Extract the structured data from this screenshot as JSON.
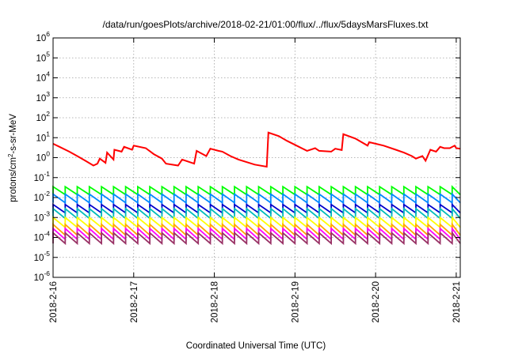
{
  "chart_data": {
    "type": "line",
    "title": "/data/run/goesPlots/archive/2018-02-21/01:00/flux/../flux/5daysMarsFluxes.txt",
    "xlabel": "Coordinated Universal Time (UTC)",
    "ylabel": {
      "base": "protons/cm",
      "sup": "2",
      "rest": "-s-sr-MeV"
    },
    "y_scale": "log",
    "ylim": [
      1e-06,
      1000000.0
    ],
    "y_ticks": [
      {
        "exp": -6
      },
      {
        "exp": -5
      },
      {
        "exp": -4
      },
      {
        "exp": -3
      },
      {
        "exp": -2
      },
      {
        "exp": -1
      },
      {
        "exp": 0
      },
      {
        "exp": 1
      },
      {
        "exp": 2
      },
      {
        "exp": 3
      },
      {
        "exp": 4
      },
      {
        "exp": 5
      },
      {
        "exp": 6
      }
    ],
    "x_range_days": [
      0,
      5.05
    ],
    "x_ticks": [
      "2018-2-16",
      "2018-2-17",
      "2018-2-18",
      "2018-2-19",
      "2018-2-20",
      "2018-2-21"
    ],
    "grid": true,
    "series": [
      {
        "color": "#ff0000",
        "x": [
          0.0,
          0.08,
          0.2,
          0.3,
          0.4,
          0.5,
          0.55,
          0.58,
          0.65,
          0.67,
          0.75,
          0.76,
          0.85,
          0.88,
          0.98,
          1.0,
          1.15,
          1.25,
          1.35,
          1.4,
          1.55,
          1.6,
          1.75,
          1.78,
          1.9,
          1.95,
          2.05,
          2.1,
          2.2,
          2.3,
          2.5,
          2.65,
          2.67,
          2.8,
          2.9,
          3.05,
          3.15,
          3.25,
          3.3,
          3.45,
          3.5,
          3.58,
          3.6,
          3.75,
          3.9,
          3.92,
          4.0,
          4.1,
          4.25,
          4.35,
          4.45,
          4.5,
          4.58,
          4.62,
          4.68,
          4.75,
          4.8,
          4.85,
          4.92,
          4.98,
          5.0,
          5.05
        ],
        "y": [
          5.0,
          3.5,
          2.0,
          1.2,
          0.7,
          0.4,
          0.5,
          0.9,
          0.55,
          1.8,
          0.8,
          2.5,
          2.0,
          3.5,
          2.5,
          4.0,
          3.0,
          1.5,
          0.9,
          0.5,
          0.4,
          0.8,
          0.5,
          2.2,
          1.2,
          2.8,
          2.2,
          2.0,
          1.2,
          0.8,
          0.45,
          0.35,
          18.0,
          12.0,
          7.0,
          3.5,
          2.2,
          3.0,
          2.2,
          2.0,
          2.8,
          2.4,
          15.0,
          9.0,
          4.0,
          6.0,
          5.0,
          4.0,
          2.5,
          1.8,
          1.2,
          0.9,
          1.2,
          0.7,
          2.5,
          2.0,
          3.5,
          3.0,
          3.0,
          4.0,
          3.0,
          2.8
        ]
      },
      {
        "color": "#00ff00",
        "period": 0.15,
        "high": 0.035,
        "low": 0.014
      },
      {
        "color": "#0088ff",
        "period": 0.15,
        "high": 0.015,
        "low": 0.0055
      },
      {
        "color": "#0000cc",
        "period": 0.15,
        "high": 0.0045,
        "low": 0.0017
      },
      {
        "color": "#00bbbb",
        "period": 0.15,
        "high": 0.0028,
        "low": 0.0009
      },
      {
        "color": "#ffff00",
        "period": 0.15,
        "high": 0.001,
        "low": 0.00032
      },
      {
        "color": "#ffa500",
        "period": 0.15,
        "high": 0.00045,
        "low": 0.00013
      },
      {
        "color": "#ff00ff",
        "period": 0.15,
        "high": 0.00028,
        "low": 8e-05
      },
      {
        "color": "#993366",
        "period": 0.15,
        "high": 0.00017,
        "low": 5e-05
      }
    ]
  }
}
